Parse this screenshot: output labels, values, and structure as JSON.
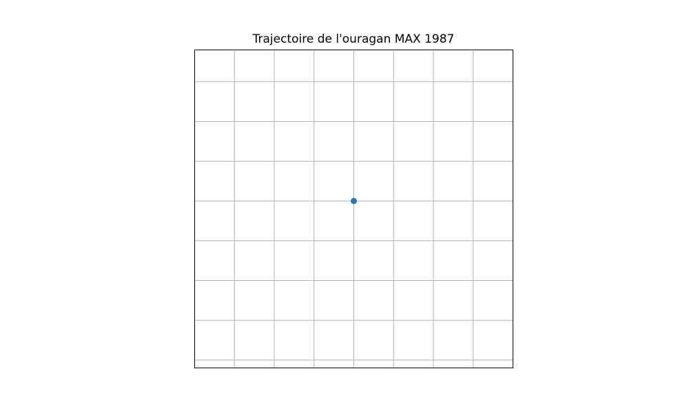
{
  "chart_data": {
    "type": "scatter",
    "title": "Trajectoire de l'ouragan MAX 1987",
    "xlabel": "",
    "ylabel": "",
    "xlim": [
      -4,
      4
    ],
    "ylim": [
      -4,
      4
    ],
    "grid": true,
    "series": [
      {
        "points": [
          {
            "x": 0,
            "y": 0.2
          }
        ]
      }
    ],
    "colors": {
      "point": "#1f77b4",
      "grid": "#b0b0b0",
      "frame": "#000000"
    }
  }
}
